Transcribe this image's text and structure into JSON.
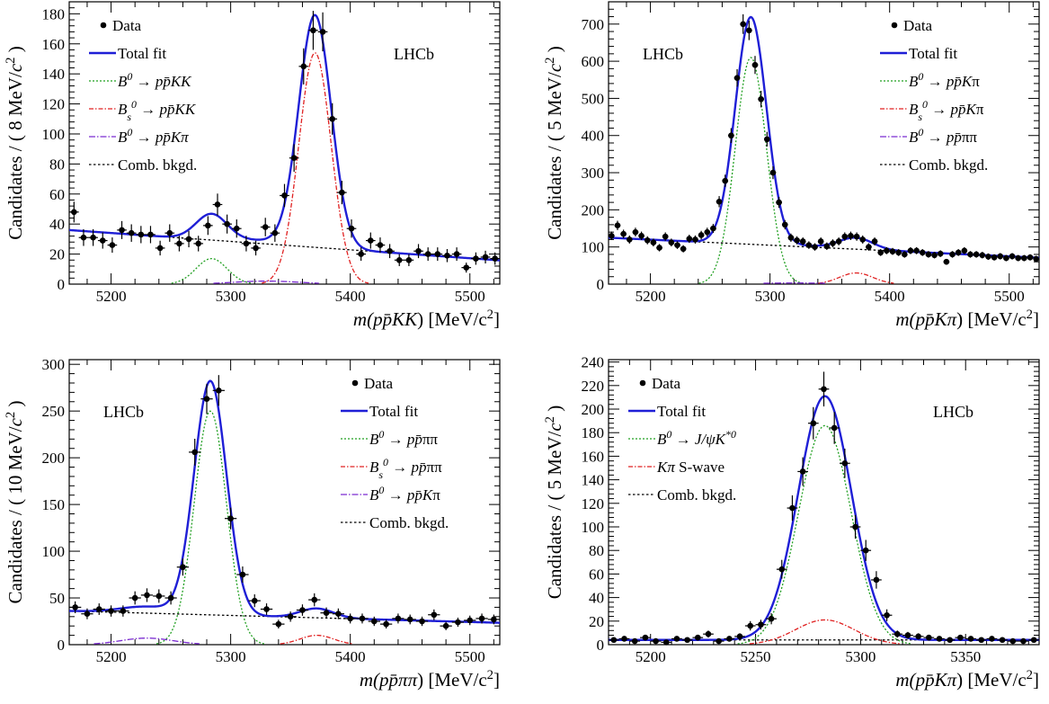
{
  "chart_data": [
    {
      "type": "scatter",
      "panel": "top-left",
      "lhcb_label": "LHCb",
      "lhcb_position": "top-right",
      "xlabel_parts": [
        "m(",
        "p",
        "p̄",
        "KK",
        ") [MeV/c",
        "2",
        "]"
      ],
      "ylabel_parts": [
        "Candidates / ( 8 MeV/",
        "c",
        "2",
        " )"
      ],
      "xlim": [
        5165,
        5525
      ],
      "ylim": [
        0,
        188
      ],
      "xticks": [
        5200,
        5300,
        5400,
        5500
      ],
      "yticks": [
        0,
        20,
        40,
        60,
        80,
        100,
        120,
        140,
        160,
        180
      ],
      "legend_position": "top-left",
      "legend": [
        {
          "kind": "data",
          "parts": [
            [
              "Data",
              ""
            ]
          ]
        },
        {
          "kind": "total",
          "parts": [
            [
              "Total fit",
              ""
            ]
          ]
        },
        {
          "kind": "sig",
          "parts": [
            [
              "B",
              "i"
            ],
            [
              "0",
              "sup"
            ],
            [
              " → ",
              ""
            ],
            [
              "pp̄KK",
              "i"
            ]
          ]
        },
        {
          "kind": "bs",
          "parts": [
            [
              "B",
              "i"
            ],
            [
              "s",
              "sub"
            ],
            [
              "0",
              "sup"
            ],
            [
              " → ",
              ""
            ],
            [
              "pp̄KK",
              "i"
            ]
          ]
        },
        {
          "kind": "refl",
          "parts": [
            [
              "B",
              "i"
            ],
            [
              "0",
              "sup"
            ],
            [
              " → ",
              ""
            ],
            [
              "pp̄Kπ",
              "i"
            ]
          ]
        },
        {
          "kind": "comb",
          "parts": [
            [
              "Comb. bkgd.",
              ""
            ]
          ]
        }
      ],
      "x": [
        5169,
        5177,
        5185,
        5193,
        5201,
        5209,
        5217,
        5225,
        5233,
        5241,
        5249,
        5257,
        5265,
        5273,
        5281,
        5289,
        5297,
        5305,
        5313,
        5321,
        5329,
        5337,
        5345,
        5353,
        5361,
        5369,
        5377,
        5385,
        5393,
        5401,
        5409,
        5417,
        5425,
        5433,
        5441,
        5449,
        5457,
        5465,
        5473,
        5481,
        5489,
        5497,
        5505,
        5513,
        5521
      ],
      "y": [
        48,
        31,
        31,
        29,
        26,
        36,
        34,
        33,
        33,
        24,
        34,
        27,
        30,
        27,
        39,
        53,
        40,
        37,
        27,
        24,
        38,
        34,
        59,
        84,
        145,
        169,
        168,
        110,
        61,
        37,
        20,
        29,
        26,
        22,
        16,
        16,
        22,
        20,
        20,
        19,
        20,
        11,
        17,
        18,
        17
      ],
      "fit": {
        "comb_a": 36,
        "comb_b": -0.056,
        "comb_x0": 5165,
        "sig": {
          "mu": 5284,
          "sigma": 13,
          "amp": 17
        },
        "bs": {
          "mu": 5370.5,
          "sigma": 13.5,
          "amp": 154
        },
        "refl": {
          "mu": 5330,
          "sigma": 28,
          "amp": 2
        }
      }
    },
    {
      "type": "scatter",
      "panel": "top-right",
      "lhcb_label": "LHCb",
      "lhcb_position": "top-left",
      "xlabel_parts": [
        "m(",
        "p",
        "p̄",
        "Kπ",
        ") [MeV/c",
        "2",
        "]"
      ],
      "ylabel_parts": [
        "Candidates / ( 5 MeV/",
        "c",
        "2",
        " )"
      ],
      "xlim": [
        5165,
        5525
      ],
      "ylim": [
        0,
        760
      ],
      "xticks": [
        5200,
        5300,
        5400,
        5500
      ],
      "yticks": [
        0,
        100,
        200,
        300,
        400,
        500,
        600,
        700
      ],
      "legend_position": "top-right",
      "legend": [
        {
          "kind": "data",
          "parts": [
            [
              "Data",
              ""
            ]
          ]
        },
        {
          "kind": "total",
          "parts": [
            [
              "Total fit",
              ""
            ]
          ]
        },
        {
          "kind": "sig",
          "parts": [
            [
              "B",
              "i"
            ],
            [
              "0",
              "sup"
            ],
            [
              " → ",
              ""
            ],
            [
              "pp̄K",
              "i"
            ],
            [
              "π",
              ""
            ]
          ]
        },
        {
          "kind": "bs",
          "parts": [
            [
              "B",
              "i"
            ],
            [
              "s",
              "sub"
            ],
            [
              "0",
              "sup"
            ],
            [
              " → ",
              ""
            ],
            [
              "pp̄K",
              "i"
            ],
            [
              "π",
              ""
            ]
          ]
        },
        {
          "kind": "refl",
          "parts": [
            [
              "B",
              "i"
            ],
            [
              "0",
              "sup"
            ],
            [
              " → ",
              ""
            ],
            [
              "pp̄",
              "i"
            ],
            [
              "ππ",
              ""
            ]
          ]
        },
        {
          "kind": "comb",
          "parts": [
            [
              "Comb. bkgd.",
              ""
            ]
          ]
        }
      ],
      "x": [
        5167.5,
        5172.5,
        5177.5,
        5182.5,
        5187.5,
        5192.5,
        5197.5,
        5202.5,
        5207.5,
        5212.5,
        5217.5,
        5222.5,
        5227.5,
        5232.5,
        5237.5,
        5242.5,
        5247.5,
        5252.5,
        5257.5,
        5262.5,
        5267.5,
        5272.5,
        5277.5,
        5282.5,
        5287.5,
        5292.5,
        5297.5,
        5302.5,
        5307.5,
        5312.5,
        5317.5,
        5322.5,
        5327.5,
        5332.5,
        5337.5,
        5342.5,
        5347.5,
        5352.5,
        5357.5,
        5362.5,
        5367.5,
        5372.5,
        5377.5,
        5382.5,
        5387.5,
        5392.5,
        5397.5,
        5402.5,
        5407.5,
        5412.5,
        5417.5,
        5422.5,
        5427.5,
        5432.5,
        5437.5,
        5442.5,
        5447.5,
        5452.5,
        5457.5,
        5462.5,
        5467.5,
        5472.5,
        5477.5,
        5482.5,
        5487.5,
        5492.5,
        5497.5,
        5502.5,
        5507.5,
        5512.5,
        5517.5,
        5522.5
      ],
      "y": [
        130,
        158,
        135,
        120,
        140,
        130,
        118,
        112,
        98,
        128,
        112,
        105,
        95,
        122,
        120,
        132,
        140,
        150,
        222,
        278,
        400,
        555,
        700,
        683,
        590,
        498,
        390,
        300,
        220,
        160,
        125,
        118,
        115,
        105,
        100,
        115,
        102,
        110,
        115,
        128,
        130,
        128,
        120,
        100,
        115,
        85,
        90,
        88,
        85,
        80,
        90,
        90,
        85,
        80,
        78,
        82,
        60,
        80,
        85,
        90,
        80,
        80,
        78,
        74,
        72,
        75,
        70,
        75,
        70,
        70,
        72,
        68
      ],
      "fit": {
        "comb_a": 125,
        "comb_b": -0.15,
        "comb_x0": 5165,
        "sig": {
          "mu": 5284,
          "sigma": 13,
          "amp": 610
        },
        "bs": {
          "mu": 5372,
          "sigma": 14,
          "amp": 30
        },
        "refl": {
          "mu": 5320,
          "sigma": 35,
          "amp": 3
        }
      }
    },
    {
      "type": "scatter",
      "panel": "bottom-left",
      "lhcb_label": "LHCb",
      "lhcb_position": "top-left",
      "xlabel_parts": [
        "m(",
        "p",
        "p̄",
        "ππ",
        ") [MeV/c",
        "2",
        "]"
      ],
      "ylabel_parts": [
        "Candidates / ( 10 MeV/",
        "c",
        "2",
        " )"
      ],
      "xlim": [
        5165,
        5525
      ],
      "ylim": [
        0,
        305
      ],
      "xticks": [
        5200,
        5300,
        5400,
        5500
      ],
      "yticks": [
        0,
        50,
        100,
        150,
        200,
        250,
        300
      ],
      "legend_position": "top-right",
      "legend": [
        {
          "kind": "data",
          "parts": [
            [
              "Data",
              ""
            ]
          ]
        },
        {
          "kind": "total",
          "parts": [
            [
              "Total fit",
              ""
            ]
          ]
        },
        {
          "kind": "sig",
          "parts": [
            [
              "B",
              "i"
            ],
            [
              "0",
              "sup"
            ],
            [
              " → ",
              ""
            ],
            [
              "pp̄",
              "i"
            ],
            [
              "ππ",
              ""
            ]
          ]
        },
        {
          "kind": "bs",
          "parts": [
            [
              "B",
              "i"
            ],
            [
              "s",
              "sub"
            ],
            [
              "0",
              "sup"
            ],
            [
              " → ",
              ""
            ],
            [
              "pp̄",
              "i"
            ],
            [
              "ππ",
              ""
            ]
          ]
        },
        {
          "kind": "refl",
          "parts": [
            [
              "B",
              "i"
            ],
            [
              "0",
              "sup"
            ],
            [
              " → ",
              ""
            ],
            [
              "pp̄K",
              "i"
            ],
            [
              "π",
              ""
            ]
          ]
        },
        {
          "kind": "comb",
          "parts": [
            [
              "Comb. bkgd.",
              ""
            ]
          ]
        }
      ],
      "x": [
        5170,
        5180,
        5190,
        5200,
        5210,
        5220,
        5230,
        5240,
        5250,
        5260,
        5270,
        5280,
        5290,
        5300,
        5310,
        5320,
        5330,
        5340,
        5350,
        5360,
        5370,
        5380,
        5390,
        5400,
        5410,
        5420,
        5430,
        5440,
        5450,
        5460,
        5470,
        5480,
        5490,
        5500,
        5510,
        5520
      ],
      "y": [
        40,
        33,
        38,
        36,
        36,
        50,
        53,
        52,
        50,
        83,
        206,
        263,
        272,
        135,
        75,
        47,
        38,
        22,
        30,
        37,
        48,
        34,
        33,
        28,
        28,
        25,
        22,
        28,
        27,
        25,
        32,
        20,
        24,
        26,
        28,
        27
      ],
      "fit": {
        "comb_a": 36,
        "comb_b": -0.035,
        "comb_x0": 5165,
        "sig": {
          "mu": 5283,
          "sigma": 13.5,
          "amp": 250
        },
        "bs": {
          "mu": 5372,
          "sigma": 14,
          "amp": 10
        },
        "refl": {
          "mu": 5230,
          "sigma": 22,
          "amp": 7
        }
      }
    },
    {
      "type": "scatter",
      "panel": "bottom-right",
      "lhcb_label": "LHCb",
      "lhcb_position": "top-right",
      "xlabel_parts": [
        "m(",
        "p",
        "p̄",
        "Kπ",
        ") [MeV/c",
        "2",
        "]"
      ],
      "ylabel_parts": [
        "Candidates / ( 5 MeV/",
        "c",
        "2",
        " )"
      ],
      "xlim": [
        5180,
        5385
      ],
      "ylim": [
        0,
        242
      ],
      "xticks": [
        5200,
        5250,
        5300,
        5350
      ],
      "yticks": [
        0,
        20,
        40,
        60,
        80,
        100,
        120,
        140,
        160,
        180,
        200,
        220,
        240
      ],
      "legend_position": "top-left",
      "legend": [
        {
          "kind": "data",
          "parts": [
            [
              "Data",
              ""
            ]
          ]
        },
        {
          "kind": "total",
          "parts": [
            [
              "Total fit",
              ""
            ]
          ]
        },
        {
          "kind": "sig",
          "parts": [
            [
              "B",
              "i"
            ],
            [
              "0",
              "sup"
            ],
            [
              " → ",
              ""
            ],
            [
              "J/ψK",
              "i"
            ],
            [
              "*0",
              "sup"
            ]
          ]
        },
        {
          "kind": "bs",
          "parts": [
            [
              "Kπ",
              "i"
            ],
            [
              " S-wave",
              ""
            ]
          ]
        },
        {
          "kind": "comb",
          "parts": [
            [
              "Comb. bkgd.",
              ""
            ]
          ]
        }
      ],
      "x": [
        5182.5,
        5187.5,
        5192.5,
        5197.5,
        5202.5,
        5207.5,
        5212.5,
        5217.5,
        5222.5,
        5227.5,
        5232.5,
        5237.5,
        5242.5,
        5247.5,
        5252.5,
        5257.5,
        5262.5,
        5267.5,
        5272.5,
        5277.5,
        5282.5,
        5287.5,
        5292.5,
        5297.5,
        5302.5,
        5307.5,
        5312.5,
        5317.5,
        5322.5,
        5327.5,
        5332.5,
        5337.5,
        5342.5,
        5347.5,
        5352.5,
        5357.5,
        5362.5,
        5367.5,
        5372.5,
        5377.5,
        5382.5
      ],
      "y": [
        4,
        5,
        3,
        6,
        3,
        2,
        5,
        4,
        6,
        9,
        3,
        5,
        7,
        16,
        17,
        22,
        64,
        116,
        147,
        188,
        217,
        184,
        154,
        100,
        80,
        55,
        25,
        9,
        8,
        7,
        6,
        5,
        4,
        6,
        5,
        4,
        5,
        4,
        3,
        3,
        4
      ],
      "fit": {
        "comb_a": 4,
        "comb_b": 0,
        "comb_x0": 5180,
        "sig": {
          "mu": 5283,
          "sigma": 12.5,
          "amp": 186
        },
        "bs": {
          "mu": 5283,
          "sigma": 14,
          "amp": 21
        },
        "refl": null
      }
    }
  ],
  "colors": {
    "data": "#000000",
    "total": "#1f1fd6",
    "sig": "#22a022",
    "bs": "#e02020",
    "refl": "#7a2ad0",
    "comb": "#000000"
  }
}
